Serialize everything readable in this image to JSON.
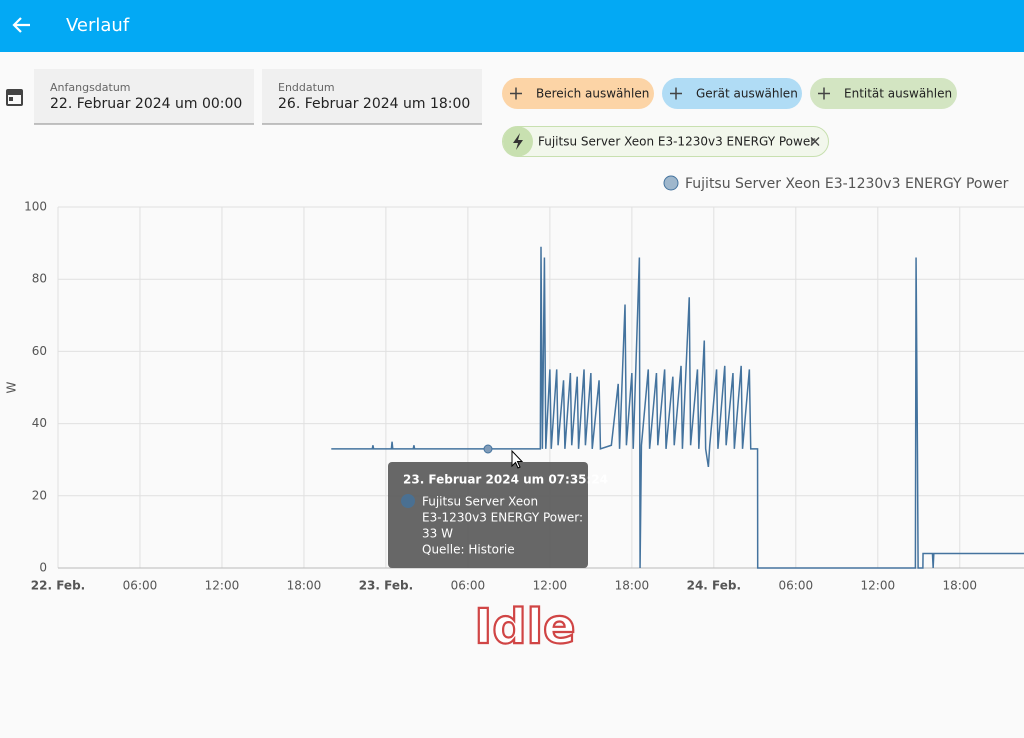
{
  "header": {
    "title": "Verlauf"
  },
  "filters": {
    "start_label": "Anfangsdatum",
    "start_value": "22. Februar 2024 um 00:00",
    "end_label": "Enddatum",
    "end_value": "26. Februar 2024 um 18:00"
  },
  "targets": {
    "buttons": [
      "Bereich auswählen",
      "Gerät auswählen",
      "Entität auswählen"
    ],
    "chip": "Fujitsu Server Xeon E3-1230v3 ENERGY Power"
  },
  "chart_data": {
    "type": "line",
    "y_label": "W",
    "grid": true,
    "xlim": [
      0,
      70.7
    ],
    "ylim": [
      0,
      100
    ],
    "yticks": [
      0,
      20,
      40,
      60,
      80,
      100
    ],
    "xticks": [
      {
        "value": 0,
        "label": "22. Feb."
      },
      {
        "value": 6,
        "label": "06:00"
      },
      {
        "value": 12,
        "label": "12:00"
      },
      {
        "value": 18,
        "label": "18:00"
      },
      {
        "value": 24,
        "label": "23. Feb."
      },
      {
        "value": 30,
        "label": "06:00"
      },
      {
        "value": 36,
        "label": "12:00"
      },
      {
        "value": 42,
        "label": "18:00"
      },
      {
        "value": 48,
        "label": "24. Feb."
      },
      {
        "value": 54,
        "label": "06:00"
      },
      {
        "value": 60,
        "label": "12:00"
      },
      {
        "value": 66,
        "label": "18:00"
      }
    ],
    "x": [
      20.0,
      23.0,
      23.05,
      23.1,
      24.4,
      24.45,
      24.5,
      26.0,
      26.05,
      26.1,
      31.0,
      35.3,
      35.35,
      35.45,
      35.6,
      35.7,
      36.0,
      36.1,
      36.5,
      36.6,
      37.0,
      37.1,
      37.5,
      37.6,
      38.0,
      38.1,
      38.5,
      38.6,
      39.0,
      39.1,
      39.6,
      39.7,
      40.5,
      41.0,
      41.1,
      41.5,
      41.6,
      42.0,
      42.1,
      42.55,
      42.6,
      42.7,
      43.2,
      43.3,
      43.8,
      43.9,
      44.4,
      44.5,
      45.0,
      45.1,
      45.6,
      45.7,
      46.2,
      46.3,
      46.8,
      46.9,
      47.3,
      47.4,
      47.6,
      47.7,
      48.2,
      48.3,
      48.8,
      48.9,
      49.4,
      49.5,
      50.0,
      50.1,
      50.6,
      50.7,
      51.2,
      51.21,
      62.75,
      62.8,
      62.9,
      62.95,
      63.3,
      63.31,
      64.0,
      64.05,
      64.1,
      70.7
    ],
    "series": [
      {
        "name": "Fujitsu Server Xeon E3-1230v3 ENERGY Power",
        "color": "#44739e",
        "values": [
          33,
          33,
          34,
          33,
          33,
          35,
          33,
          33,
          34,
          33,
          33,
          33,
          89,
          33,
          86,
          33,
          55,
          33,
          55,
          34,
          52,
          33,
          54,
          34,
          53,
          33,
          55,
          34,
          54,
          33,
          52,
          33,
          34,
          51,
          33,
          73,
          34,
          54,
          33,
          86,
          0,
          34,
          55,
          33,
          54,
          34,
          55,
          33,
          53,
          34,
          56,
          33,
          75,
          34,
          55,
          33,
          63,
          33,
          28,
          34,
          55,
          33,
          56,
          34,
          54,
          33,
          56,
          33,
          55,
          33,
          33,
          0,
          0,
          86,
          33,
          0,
          0,
          4,
          4,
          0,
          4,
          4
        ]
      }
    ],
    "tooltip": {
      "title": "23. Februar 2024 um 07:35:24",
      "line1": "Fujitsu Server Xeon",
      "line2": "E3-1230v3 ENERGY Power:",
      "line3": "33 W",
      "line4": "Quelle: Historie"
    },
    "annotation": "Idle"
  }
}
